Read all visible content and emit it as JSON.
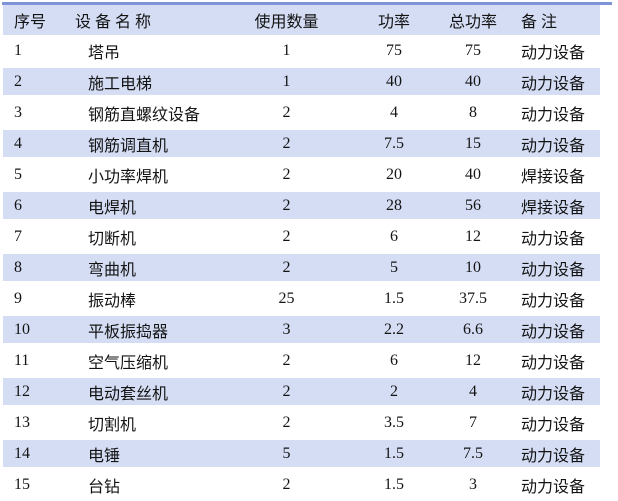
{
  "table": {
    "columns": [
      "序号",
      "设 备 名 称",
      "使用数量",
      "功率",
      "总功率",
      "备 注"
    ],
    "rows": [
      {
        "index": "1",
        "name": "塔吊",
        "qty": "1",
        "power": "75",
        "total_power": "75",
        "note": "动力设备"
      },
      {
        "index": "2",
        "name": "施工电梯",
        "qty": "1",
        "power": "40",
        "total_power": "40",
        "note": "动力设备"
      },
      {
        "index": "3",
        "name": "钢筋直螺纹设备",
        "qty": "2",
        "power": "4",
        "total_power": "8",
        "note": "动力设备"
      },
      {
        "index": "4",
        "name": "钢筋调直机",
        "qty": "2",
        "power": "7.5",
        "total_power": "15",
        "note": "动力设备"
      },
      {
        "index": "5",
        "name": "小功率焊机",
        "qty": "2",
        "power": "20",
        "total_power": "40",
        "note": "焊接设备"
      },
      {
        "index": "6",
        "name": "电焊机",
        "qty": "2",
        "power": "28",
        "total_power": "56",
        "note": "焊接设备"
      },
      {
        "index": "7",
        "name": "切断机",
        "qty": "2",
        "power": "6",
        "total_power": "12",
        "note": "动力设备"
      },
      {
        "index": "8",
        "name": "弯曲机",
        "qty": "2",
        "power": "5",
        "total_power": "10",
        "note": "动力设备"
      },
      {
        "index": "9",
        "name": "振动棒",
        "qty": "25",
        "power": "1.5",
        "total_power": "37.5",
        "note": "动力设备"
      },
      {
        "index": "10",
        "name": "平板振捣器",
        "qty": "3",
        "power": "2.2",
        "total_power": "6.6",
        "note": "动力设备"
      },
      {
        "index": "11",
        "name": "空气压缩机",
        "qty": "2",
        "power": "6",
        "total_power": "12",
        "note": "动力设备"
      },
      {
        "index": "12",
        "name": "电动套丝机",
        "qty": "2",
        "power": "2",
        "total_power": "4",
        "note": "动力设备"
      },
      {
        "index": "13",
        "name": "切割机",
        "qty": "2",
        "power": "3.5",
        "total_power": "7",
        "note": "动力设备"
      },
      {
        "index": "14",
        "name": "电锤",
        "qty": "5",
        "power": "1.5",
        "total_power": "7.5",
        "note": "动力设备"
      },
      {
        "index": "15",
        "name": "台钻",
        "qty": "2",
        "power": "1.5",
        "total_power": "3",
        "note": "动力设备"
      }
    ],
    "colors": {
      "top_rule": "#7e93d8",
      "row_stripe": "#d4ddf4",
      "header_bg": "#d4ddf4",
      "text": "#141414"
    }
  }
}
